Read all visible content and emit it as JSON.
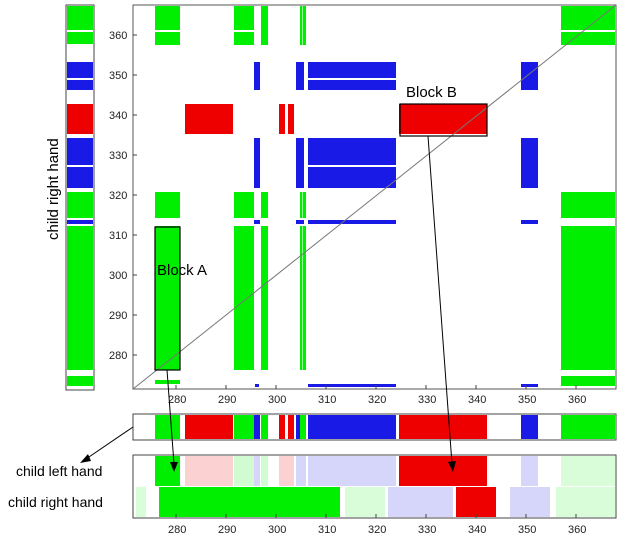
{
  "labels": {
    "ylabel": "child right hand",
    "block_a": "Block A",
    "block_b": "Block B",
    "row_left": "child left hand",
    "row_right": "child right hand"
  },
  "colors": {
    "green": "#00ee00",
    "blue": "#1a1ae6",
    "red": "#ee0000",
    "gray": "#777777"
  },
  "axes": {
    "main_x_ticks": [
      "280",
      "290",
      "300",
      "310",
      "320",
      "330",
      "340",
      "350",
      "360"
    ],
    "main_y_ticks": [
      "280",
      "290",
      "300",
      "310",
      "320",
      "330",
      "340",
      "350",
      "360"
    ],
    "bottom_x_ticks": [
      "280",
      "290",
      "300",
      "310",
      "320",
      "330",
      "340",
      "350",
      "360"
    ]
  }
}
